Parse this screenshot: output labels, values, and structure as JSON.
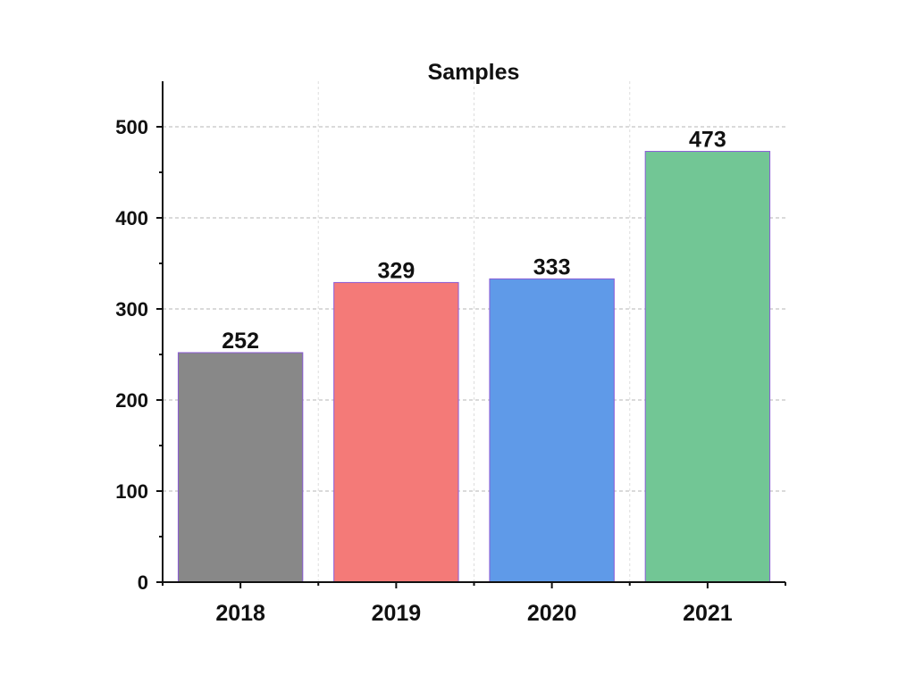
{
  "chart_data": {
    "type": "bar",
    "title": "Samples",
    "categories": [
      "2018",
      "2019",
      "2020",
      "2021"
    ],
    "values": [
      252,
      329,
      333,
      473
    ],
    "data_labels": [
      "252",
      "329",
      "333",
      "473"
    ],
    "colors": [
      "#888888",
      "#f47a78",
      "#5f9ae8",
      "#72c695"
    ],
    "ylim": [
      0,
      550
    ],
    "yticks": [
      0,
      100,
      200,
      300,
      400,
      500
    ],
    "ytick_labels": [
      "0",
      "100",
      "200",
      "300",
      "400",
      "500"
    ],
    "y_minor_step": 50,
    "xlabel": "",
    "ylabel": "",
    "grid": true,
    "legend": "none"
  }
}
